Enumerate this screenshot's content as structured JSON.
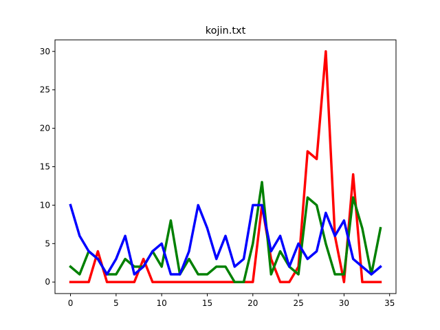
{
  "chart_data": {
    "type": "line",
    "title": "kojin.txt",
    "xlabel": "",
    "ylabel": "",
    "xlim": [
      -1.7,
      35.7
    ],
    "ylim": [
      -1.5,
      31.5
    ],
    "xticks": [
      0,
      5,
      10,
      15,
      20,
      25,
      30,
      35
    ],
    "yticks": [
      0,
      5,
      10,
      15,
      20,
      25,
      30
    ],
    "grid": false,
    "legend": false,
    "x": [
      0,
      1,
      2,
      3,
      4,
      5,
      6,
      7,
      8,
      9,
      10,
      11,
      12,
      13,
      14,
      15,
      16,
      17,
      18,
      19,
      20,
      21,
      22,
      23,
      24,
      25,
      26,
      27,
      28,
      29,
      30,
      31,
      32,
      33,
      34
    ],
    "series": [
      {
        "color": "#ff0000",
        "values": [
          0,
          0,
          0,
          4,
          0,
          0,
          0,
          0,
          3,
          0,
          0,
          0,
          0,
          0,
          0,
          0,
          0,
          0,
          0,
          0,
          0,
          10,
          3,
          0,
          0,
          2,
          17,
          16,
          30,
          6,
          0,
          14,
          0,
          0,
          0
        ]
      },
      {
        "color": "#008000",
        "values": [
          2,
          1,
          4,
          3,
          1,
          1,
          3,
          2,
          2,
          4,
          2,
          8,
          1,
          3,
          1,
          1,
          2,
          2,
          0,
          0,
          5,
          13,
          1,
          4,
          2,
          1,
          11,
          10,
          5,
          1,
          1,
          11,
          7,
          1,
          7
        ]
      },
      {
        "color": "#0000ff",
        "values": [
          10,
          6,
          4,
          3,
          1,
          3,
          6,
          1,
          2,
          4,
          5,
          1,
          1,
          4,
          10,
          7,
          3,
          6,
          2,
          3,
          10,
          10,
          4,
          6,
          2,
          5,
          3,
          4,
          9,
          6,
          8,
          3,
          2,
          1,
          2
        ]
      }
    ]
  }
}
